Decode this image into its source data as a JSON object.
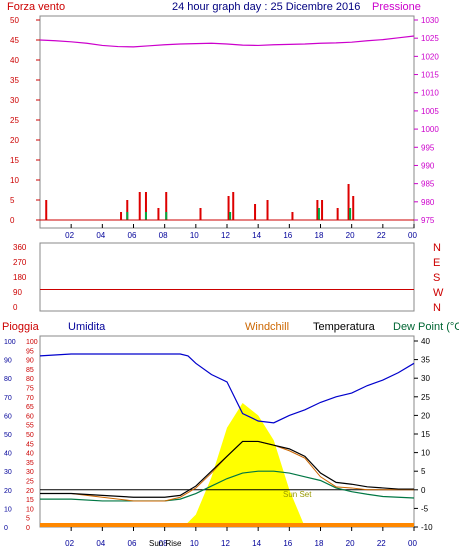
{
  "title": "24 hour graph day : 25 Dicembre 2016",
  "chart_data": [
    {
      "type": "bar+line",
      "panel": "wind-pressure",
      "left_label": "Forza vento",
      "right_label": "Pressione",
      "left_ticks": [
        0,
        5,
        10,
        15,
        20,
        25,
        30,
        35,
        40,
        45,
        50
      ],
      "right_ticks": [
        975,
        980,
        985,
        990,
        995,
        1000,
        1005,
        1010,
        1015,
        1020,
        1025,
        1030
      ],
      "x_ticks": [
        "02",
        "04",
        "06",
        "08",
        "10",
        "12",
        "14",
        "16",
        "18",
        "20",
        "22",
        "00"
      ],
      "pressure_series": {
        "name": "Pressione",
        "x": [
          0,
          1,
          2,
          3,
          4,
          5,
          6,
          7,
          8,
          9,
          10,
          11,
          12,
          13,
          14,
          15,
          16,
          17,
          18,
          19,
          20,
          21,
          22,
          23,
          24
        ],
        "y": [
          1024.5,
          1024.3,
          1024.0,
          1023.6,
          1023.0,
          1022.7,
          1022.6,
          1022.9,
          1023.2,
          1023.4,
          1023.5,
          1023.6,
          1023.4,
          1023.1,
          1023.0,
          1023.2,
          1023.3,
          1023.4,
          1023.6,
          1023.7,
          1023.9,
          1024.3,
          1024.6,
          1025.1,
          1025.6
        ]
      },
      "wind_gust_bars": [
        {
          "x": 0.4,
          "y": 5
        },
        {
          "x": 5.2,
          "y": 2
        },
        {
          "x": 5.6,
          "y": 5
        },
        {
          "x": 6.4,
          "y": 7
        },
        {
          "x": 6.8,
          "y": 7
        },
        {
          "x": 7.6,
          "y": 3
        },
        {
          "x": 8.1,
          "y": 7
        },
        {
          "x": 10.3,
          "y": 3
        },
        {
          "x": 12.1,
          "y": 6
        },
        {
          "x": 12.4,
          "y": 7
        },
        {
          "x": 13.8,
          "y": 4
        },
        {
          "x": 14.6,
          "y": 5
        },
        {
          "x": 16.2,
          "y": 2
        },
        {
          "x": 17.8,
          "y": 5
        },
        {
          "x": 18.1,
          "y": 5
        },
        {
          "x": 19.1,
          "y": 3
        },
        {
          "x": 19.8,
          "y": 9
        },
        {
          "x": 20.1,
          "y": 6
        }
      ],
      "wind_speed_bars": [
        {
          "x": 5.6,
          "y": 2
        },
        {
          "x": 6.8,
          "y": 2
        },
        {
          "x": 8.1,
          "y": 2
        },
        {
          "x": 12.2,
          "y": 2
        },
        {
          "x": 17.9,
          "y": 3
        },
        {
          "x": 19.9,
          "y": 3
        }
      ]
    },
    {
      "type": "line",
      "panel": "wind-direction",
      "left_ticks": [
        0,
        90,
        180,
        270,
        360
      ],
      "right_labels": [
        "N",
        "W",
        "S",
        "E",
        "N"
      ],
      "series": {
        "name": "direction",
        "x": [
          0,
          24
        ],
        "y": [
          105,
          105
        ]
      }
    },
    {
      "type": "line+area",
      "panel": "temperature-humidity",
      "legend": [
        "Pioggia",
        "Umidita",
        "Windchill",
        "Temperatura",
        "Dew Point (°C"
      ],
      "left_ticks_rain": [
        0,
        5,
        10,
        15,
        20,
        25,
        30,
        35,
        40,
        45,
        50,
        55,
        60,
        65,
        70,
        75,
        80,
        85,
        90,
        95,
        100
      ],
      "left_ticks_humidity": [
        0,
        10,
        20,
        30,
        40,
        50,
        60,
        70,
        80,
        90,
        100
      ],
      "right_ticks_temp": [
        -10,
        -5,
        0,
        5,
        10,
        15,
        20,
        25,
        30,
        35,
        40
      ],
      "x_ticks": [
        "02",
        "04",
        "06",
        "08",
        "10",
        "12",
        "14",
        "16",
        "18",
        "20",
        "22",
        "00"
      ],
      "annotations": [
        "Sun Set",
        "Sun Rise"
      ],
      "humidity": {
        "x": [
          0,
          2,
          4,
          6,
          8,
          9,
          9.5,
          10,
          11,
          12,
          13,
          14,
          15,
          16,
          17,
          18,
          19,
          20,
          21,
          22,
          23,
          24
        ],
        "y": [
          92,
          93,
          93,
          93,
          93,
          93,
          92,
          88,
          82,
          78,
          61,
          57,
          56,
          60,
          63,
          67,
          70,
          72,
          76,
          79,
          83,
          88
        ]
      },
      "temperature": {
        "x": [
          0,
          2,
          4,
          6,
          8,
          9,
          10,
          11,
          12,
          13,
          14,
          15,
          16,
          17,
          18,
          19,
          20,
          21,
          22,
          23,
          24
        ],
        "y": [
          -1,
          -1,
          -1.5,
          -2,
          -2,
          -1.5,
          1,
          5,
          9,
          13,
          13,
          12,
          11,
          9,
          4.5,
          2,
          1.5,
          0.8,
          0.5,
          0.2,
          0.2
        ]
      },
      "dewpoint": {
        "x": [
          0,
          2,
          4,
          6,
          8,
          9,
          10,
          11,
          12,
          13,
          14,
          15,
          16,
          17,
          18,
          19,
          20,
          21,
          22,
          23,
          24
        ],
        "y": [
          -2.5,
          -2.5,
          -3,
          -3,
          -3,
          -2.5,
          -1,
          1,
          3,
          4.5,
          5,
          5,
          4.5,
          3.5,
          2.5,
          0.5,
          -0.5,
          -1.2,
          -1.8,
          -2,
          -2.2
        ]
      },
      "windchill": {
        "x": [
          0,
          2,
          4,
          6,
          8,
          9,
          10,
          11,
          12,
          13,
          14,
          15,
          16,
          17,
          18,
          19,
          20,
          21,
          22,
          23,
          24
        ],
        "y": [
          -1,
          -1,
          -2,
          -3,
          -3,
          -2,
          0.5,
          4.5,
          9,
          13,
          13,
          12,
          10.5,
          8.5,
          3.5,
          0.8,
          0.5,
          0,
          0,
          0,
          0
        ]
      },
      "solar": {
        "x": [
          9.2,
          10,
          11,
          12,
          13,
          14,
          15,
          16,
          17
        ],
        "y": [
          0,
          2,
          8,
          16,
          20,
          18,
          14,
          6,
          0
        ]
      },
      "rain_line": 0
    }
  ]
}
